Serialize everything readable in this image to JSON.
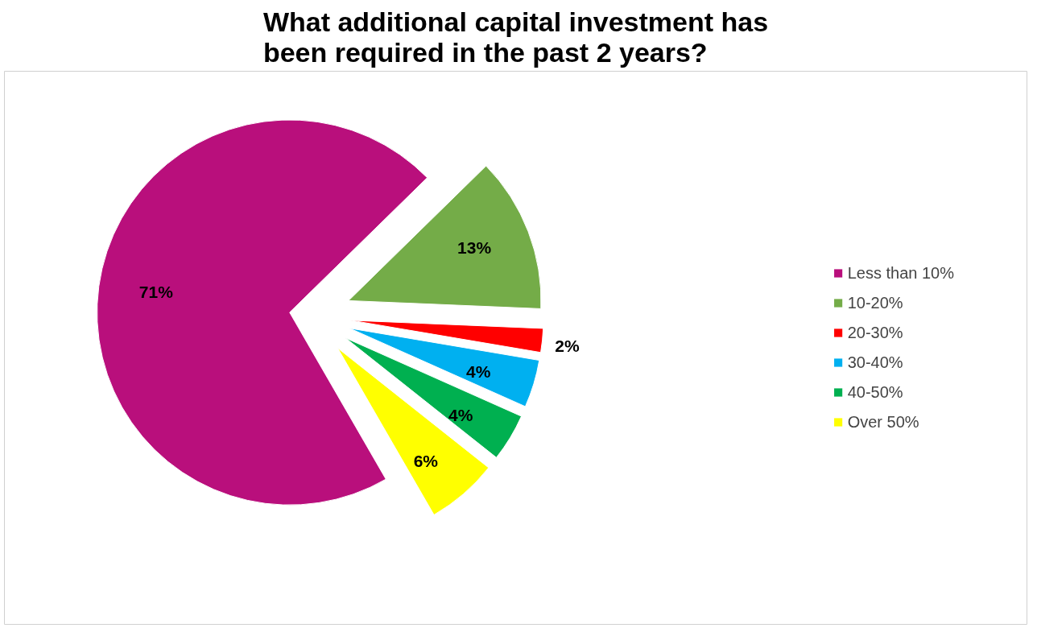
{
  "chart_data": {
    "type": "pie",
    "title": "What additional capital investment has been required in the past 2 years?",
    "categories": [
      "Less than 10%",
      "10-20%",
      "20-30%",
      "30-40%",
      "40-50%",
      "Over 50%"
    ],
    "values": [
      71,
      13,
      2,
      4,
      4,
      6
    ],
    "colors": [
      "#b90f7c",
      "#74ac48",
      "#ff0000",
      "#00b0f0",
      "#00b050",
      "#ffff00"
    ],
    "value_labels": [
      "71%",
      "13%",
      "2%",
      "4%",
      "4%",
      "6%"
    ],
    "legend": "right"
  }
}
